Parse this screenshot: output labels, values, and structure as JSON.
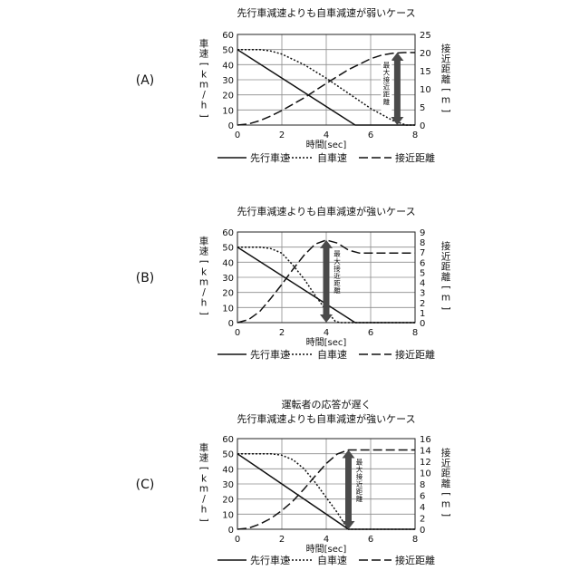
{
  "chart_data": [
    {
      "type": "line",
      "panel_label": "(A)",
      "title": "先行車減速よりも自車減速が弱いケース",
      "xlabel": "時間[sec]",
      "ylabel": "車速[km/h]",
      "y2label": "接近距離[m]",
      "xlim": [
        0,
        8
      ],
      "ylim": [
        0,
        60
      ],
      "y2lim": [
        0,
        25
      ],
      "xticks": [
        "0",
        "2",
        "4",
        "6",
        "8"
      ],
      "yticks": [
        "0",
        "10",
        "20",
        "30",
        "40",
        "50",
        "60"
      ],
      "y2ticks": [
        "0",
        "5",
        "10",
        "15",
        "20",
        "25"
      ],
      "annotation": "最大接近距離",
      "annotation_range": [
        0,
        20
      ],
      "legend": [
        "先行車速",
        "自車速",
        "接近距離"
      ],
      "series": [
        {
          "name": "先行車速",
          "axis": "left",
          "style": "solid",
          "points": [
            [
              0,
              50
            ],
            [
              5.3,
              0
            ],
            [
              8,
              0
            ]
          ]
        },
        {
          "name": "自車速",
          "axis": "left",
          "style": "dotted",
          "points": [
            [
              0,
              50
            ],
            [
              1,
              50
            ],
            [
              1.5,
              49
            ],
            [
              2,
              47
            ],
            [
              3,
              40
            ],
            [
              4,
              31
            ],
            [
              5,
              21
            ],
            [
              6,
              11
            ],
            [
              7,
              3
            ],
            [
              7.6,
              0
            ],
            [
              8,
              0
            ]
          ]
        },
        {
          "name": "接近距離",
          "axis": "right",
          "style": "dashed",
          "points": [
            [
              0,
              0
            ],
            [
              0.5,
              0.3
            ],
            [
              1,
              1.2
            ],
            [
              1.5,
              2.5
            ],
            [
              2,
              4
            ],
            [
              3,
              7.5
            ],
            [
              4,
              11.5
            ],
            [
              5,
              15.3
            ],
            [
              6,
              18.3
            ],
            [
              6.5,
              19.3
            ],
            [
              7,
              19.8
            ],
            [
              7.5,
              20
            ],
            [
              8,
              20
            ]
          ]
        }
      ]
    },
    {
      "type": "line",
      "panel_label": "(B)",
      "title": "先行車減速よりも自車減速が強いケース",
      "xlabel": "時間[sec]",
      "ylabel": "車速[km/h]",
      "y2label": "接近距離[m]",
      "xlim": [
        0,
        8
      ],
      "ylim": [
        0,
        60
      ],
      "y2lim": [
        0,
        9
      ],
      "xticks": [
        "0",
        "2",
        "4",
        "6",
        "8"
      ],
      "yticks": [
        "0",
        "10",
        "20",
        "30",
        "40",
        "50",
        "60"
      ],
      "y2ticks": [
        "0",
        "1",
        "2",
        "3",
        "4",
        "5",
        "6",
        "7",
        "8",
        "9"
      ],
      "annotation": "最大接近距離",
      "annotation_range": [
        0,
        8.2
      ],
      "legend": [
        "先行車速",
        "自車速",
        "接近距離"
      ],
      "series": [
        {
          "name": "先行車速",
          "axis": "left",
          "style": "solid",
          "points": [
            [
              0,
              50
            ],
            [
              5.3,
              0
            ],
            [
              8,
              0
            ]
          ]
        },
        {
          "name": "自車速",
          "axis": "left",
          "style": "dotted",
          "points": [
            [
              0,
              50
            ],
            [
              1,
              50
            ],
            [
              1.5,
              49
            ],
            [
              2,
              46
            ],
            [
              2.5,
              38
            ],
            [
              3,
              29
            ],
            [
              3.5,
              18
            ],
            [
              4,
              8
            ],
            [
              4.4,
              1
            ],
            [
              4.6,
              0
            ],
            [
              8,
              0
            ]
          ]
        },
        {
          "name": "接近距離",
          "axis": "right",
          "style": "dashed",
          "points": [
            [
              0,
              0
            ],
            [
              0.5,
              0.3
            ],
            [
              1,
              1.1
            ],
            [
              1.5,
              2.4
            ],
            [
              2,
              3.8
            ],
            [
              2.5,
              5.3
            ],
            [
              3,
              6.7
            ],
            [
              3.5,
              7.8
            ],
            [
              4,
              8.2
            ],
            [
              4.5,
              7.9
            ],
            [
              5,
              7.2
            ],
            [
              5.5,
              6.9
            ],
            [
              6,
              6.9
            ],
            [
              8,
              6.9
            ]
          ]
        }
      ]
    },
    {
      "type": "line",
      "panel_label": "(C)",
      "title": "運転者の応答が遅く\n先行車減速よりも自車減速が強いケース",
      "xlabel": "時間[sec]",
      "ylabel": "車速[km/h]",
      "y2label": "接近距離[m]",
      "xlim": [
        0,
        8
      ],
      "ylim": [
        0,
        60
      ],
      "y2lim": [
        0,
        16
      ],
      "xticks": [
        "0",
        "2",
        "4",
        "6",
        "8"
      ],
      "yticks": [
        "0",
        "10",
        "20",
        "30",
        "40",
        "50",
        "60"
      ],
      "y2ticks": [
        "0",
        "2",
        "4",
        "6",
        "8",
        "10",
        "12",
        "14",
        "16"
      ],
      "annotation": "最大接近距離",
      "annotation_range": [
        0,
        14
      ],
      "legend": [
        "先行車速",
        "自車速",
        "接近距離"
      ],
      "series": [
        {
          "name": "先行車速",
          "axis": "left",
          "style": "solid",
          "points": [
            [
              0,
              50
            ],
            [
              5,
              0
            ],
            [
              8,
              0
            ]
          ]
        },
        {
          "name": "自車速",
          "axis": "left",
          "style": "dotted",
          "points": [
            [
              0,
              50
            ],
            [
              1.5,
              50
            ],
            [
              2,
              49
            ],
            [
              2.5,
              46
            ],
            [
              3,
              40
            ],
            [
              3.5,
              31
            ],
            [
              4,
              21
            ],
            [
              4.5,
              11
            ],
            [
              4.8,
              4
            ],
            [
              5,
              0
            ],
            [
              8,
              0
            ]
          ]
        },
        {
          "name": "接近距離",
          "axis": "right",
          "style": "dashed",
          "points": [
            [
              0,
              0
            ],
            [
              0.5,
              0.2
            ],
            [
              1,
              0.9
            ],
            [
              1.5,
              1.9
            ],
            [
              2,
              3.3
            ],
            [
              2.5,
              5
            ],
            [
              3,
              7.1
            ],
            [
              3.5,
              9.4
            ],
            [
              4,
              11.6
            ],
            [
              4.5,
              13.3
            ],
            [
              5,
              14
            ],
            [
              5.5,
              14
            ],
            [
              8,
              14
            ]
          ]
        }
      ]
    }
  ]
}
